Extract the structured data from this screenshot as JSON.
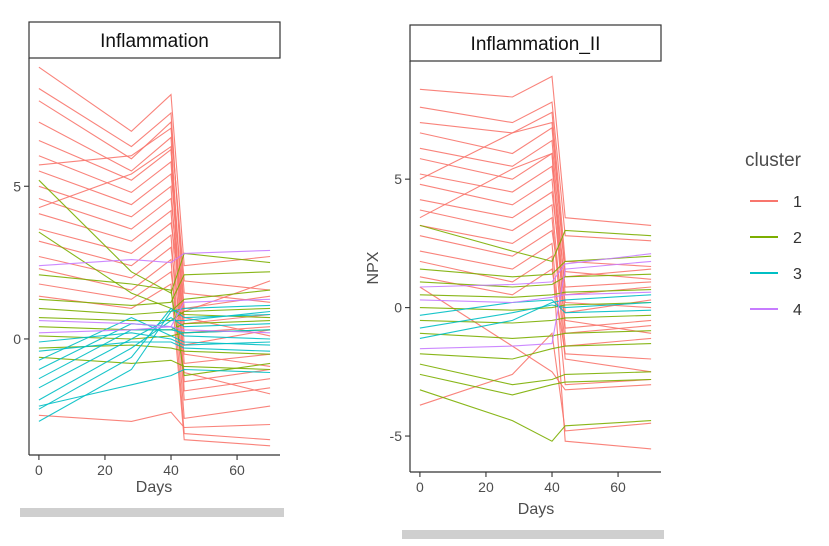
{
  "chart_data": {
    "type": "line",
    "legend": {
      "title": "cluster",
      "position": "right",
      "entries": [
        {
          "label": "1",
          "color": "#F8766D"
        },
        {
          "label": "2",
          "color": "#7CAE00"
        },
        {
          "label": "3",
          "color": "#00BFC4"
        },
        {
          "label": "4",
          "color": "#C77CFF"
        }
      ]
    },
    "panels": [
      {
        "strip_label": "Inflammation",
        "xlabel": "Days",
        "ylabel": "",
        "xlim": [
          -3,
          73
        ],
        "ylim": [
          -3.8,
          9.2
        ],
        "x_ticks": [
          0,
          20,
          40,
          60
        ],
        "y_ticks": [
          0,
          5
        ],
        "x": [
          0,
          28,
          40,
          44,
          70
        ],
        "series": [
          {
            "cluster": "1",
            "values": [
              8.9,
              6.8,
              8.0,
              2.4,
              2.7
            ]
          },
          {
            "cluster": "1",
            "values": [
              8.2,
              6.3,
              7.4,
              0.9,
              1.9
            ]
          },
          {
            "cluster": "1",
            "values": [
              7.8,
              5.9,
              7.1,
              1.5,
              1.2
            ]
          },
          {
            "cluster": "1",
            "values": [
              7.1,
              5.5,
              6.6,
              -0.2,
              0.3
            ]
          },
          {
            "cluster": "1",
            "values": [
              6.5,
              5.2,
              6.2,
              0.5,
              0.8
            ]
          },
          {
            "cluster": "1",
            "values": [
              6.0,
              4.8,
              5.8,
              -0.8,
              -0.5
            ]
          },
          {
            "cluster": "1",
            "values": [
              5.5,
              4.4,
              5.4,
              1.0,
              1.4
            ]
          },
          {
            "cluster": "1",
            "values": [
              5.0,
              4.0,
              5.0,
              -1.4,
              -1.0
            ]
          },
          {
            "cluster": "1",
            "values": [
              4.6,
              3.6,
              4.6,
              0.2,
              0.4
            ]
          },
          {
            "cluster": "1",
            "values": [
              4.1,
              3.2,
              4.2,
              -2.0,
              -1.6
            ]
          },
          {
            "cluster": "1",
            "values": [
              3.6,
              2.8,
              3.8,
              0.7,
              0.1
            ]
          },
          {
            "cluster": "1",
            "values": [
              3.2,
              2.4,
              3.4,
              -2.6,
              -2.2
            ]
          },
          {
            "cluster": "1",
            "values": [
              2.7,
              2.0,
              3.0,
              -0.5,
              -0.9
            ]
          },
          {
            "cluster": "1",
            "values": [
              2.3,
              1.6,
              2.6,
              -3.1,
              -3.3
            ]
          },
          {
            "cluster": "1",
            "values": [
              1.8,
              1.3,
              2.2,
              -1.1,
              -1.8
            ]
          },
          {
            "cluster": "1",
            "values": [
              1.4,
              1.0,
              1.8,
              -3.3,
              -3.5
            ]
          },
          {
            "cluster": "1",
            "values": [
              -2.5,
              -2.7,
              -2.4,
              -2.9,
              -2.8
            ]
          },
          {
            "cluster": "1",
            "values": [
              5.7,
              6.0,
              6.9,
              1.9,
              1.6
            ]
          },
          {
            "cluster": "1",
            "values": [
              4.3,
              5.4,
              6.3,
              -1.7,
              -1.3
            ]
          },
          {
            "cluster": "2",
            "values": [
              1.3,
              1.1,
              1.2,
              2.1,
              2.2
            ]
          },
          {
            "cluster": "2",
            "values": [
              1.0,
              0.8,
              0.9,
              1.3,
              1.6
            ]
          },
          {
            "cluster": "2",
            "values": [
              0.7,
              0.6,
              0.6,
              0.9,
              1.0
            ]
          },
          {
            "cluster": "2",
            "values": [
              0.4,
              0.3,
              0.3,
              0.5,
              0.6
            ]
          },
          {
            "cluster": "2",
            "values": [
              0.1,
              0.0,
              0.1,
              0.2,
              0.3
            ]
          },
          {
            "cluster": "2",
            "values": [
              -0.3,
              -0.2,
              -0.3,
              -0.4,
              -0.5
            ]
          },
          {
            "cluster": "2",
            "values": [
              -0.6,
              -0.8,
              -0.7,
              -0.9,
              -1.0
            ]
          },
          {
            "cluster": "2",
            "values": [
              5.2,
              2.2,
              1.5,
              2.8,
              2.5
            ]
          },
          {
            "cluster": "2",
            "values": [
              3.5,
              1.5,
              1.0,
              0.8,
              0.7
            ]
          },
          {
            "cluster": "2",
            "values": [
              2.1,
              1.8,
              1.6,
              -1.2,
              -0.8
            ]
          },
          {
            "cluster": "3",
            "values": [
              -2.7,
              -1.0,
              0.9,
              1.0,
              1.1
            ]
          },
          {
            "cluster": "3",
            "values": [
              -2.3,
              -0.6,
              1.0,
              0.7,
              0.8
            ]
          },
          {
            "cluster": "3",
            "values": [
              -2.0,
              -0.3,
              0.6,
              0.6,
              0.9
            ]
          },
          {
            "cluster": "3",
            "values": [
              -1.6,
              0.0,
              0.7,
              0.4,
              0.5
            ]
          },
          {
            "cluster": "3",
            "values": [
              -1.3,
              0.3,
              0.3,
              0.2,
              0.3
            ]
          },
          {
            "cluster": "3",
            "values": [
              -1.0,
              0.5,
              0.4,
              0.1,
              0.0
            ]
          },
          {
            "cluster": "3",
            "values": [
              -0.7,
              0.7,
              0.1,
              -0.1,
              -0.2
            ]
          },
          {
            "cluster": "3",
            "values": [
              -0.4,
              -0.1,
              -0.1,
              -0.3,
              -0.4
            ]
          },
          {
            "cluster": "3",
            "values": [
              -0.1,
              0.2,
              0.0,
              -0.2,
              -0.1
            ]
          },
          {
            "cluster": "3",
            "values": [
              -2.2,
              -1.5,
              -1.2,
              -1.0,
              -1.1
            ]
          },
          {
            "cluster": "4",
            "values": [
              2.4,
              2.6,
              2.5,
              2.8,
              2.9
            ]
          },
          {
            "cluster": "4",
            "values": [
              0.2,
              0.3,
              0.4,
              1.2,
              1.3
            ]
          },
          {
            "cluster": "4",
            "values": [
              0.6,
              0.5,
              0.4,
              0.3,
              0.2
            ]
          }
        ]
      },
      {
        "strip_label": "Inflammation_II",
        "xlabel": "Days",
        "ylabel": "NPX",
        "xlim": [
          -3,
          73
        ],
        "ylim": [
          -6.4,
          9.6
        ],
        "x_ticks": [
          0,
          20,
          40,
          60
        ],
        "y_ticks": [
          -5,
          0,
          5
        ],
        "x": [
          0,
          28,
          40,
          44,
          70
        ],
        "series": [
          {
            "cluster": "1",
            "values": [
              8.5,
              8.2,
              9.0,
              3.5,
              3.2
            ]
          },
          {
            "cluster": "1",
            "values": [
              7.8,
              7.2,
              8.0,
              2.8,
              2.6
            ]
          },
          {
            "cluster": "1",
            "values": [
              7.2,
              6.8,
              7.6,
              1.8,
              1.6
            ]
          },
          {
            "cluster": "1",
            "values": [
              6.8,
              6.0,
              7.0,
              1.2,
              1.5
            ]
          },
          {
            "cluster": "1",
            "values": [
              6.2,
              5.5,
              6.5,
              0.5,
              0.8
            ]
          },
          {
            "cluster": "1",
            "values": [
              5.8,
              5.0,
              6.0,
              -0.2,
              0.3
            ]
          },
          {
            "cluster": "1",
            "values": [
              5.2,
              4.5,
              5.5,
              0.8,
              1.0
            ]
          },
          {
            "cluster": "1",
            "values": [
              4.8,
              4.0,
              5.0,
              -0.8,
              -0.5
            ]
          },
          {
            "cluster": "1",
            "values": [
              4.2,
              3.5,
              4.5,
              0.2,
              0.0
            ]
          },
          {
            "cluster": "1",
            "values": [
              3.8,
              3.0,
              4.0,
              -1.5,
              -1.2
            ]
          },
          {
            "cluster": "1",
            "values": [
              3.2,
              2.5,
              3.5,
              -2.0,
              -2.5
            ]
          },
          {
            "cluster": "1",
            "values": [
              2.8,
              2.0,
              3.0,
              -0.5,
              -1.0
            ]
          },
          {
            "cluster": "1",
            "values": [
              2.2,
              1.5,
              2.5,
              -3.0,
              -2.8
            ]
          },
          {
            "cluster": "1",
            "values": [
              1.8,
              1.0,
              2.0,
              -5.2,
              -5.5
            ]
          },
          {
            "cluster": "1",
            "values": [
              1.2,
              0.5,
              1.5,
              -1.8,
              -2.0
            ]
          },
          {
            "cluster": "1",
            "values": [
              -3.8,
              -2.6,
              -1.0,
              -4.8,
              -4.5
            ]
          },
          {
            "cluster": "1",
            "values": [
              0.8,
              -1.5,
              -2.5,
              -3.2,
              -3.0
            ]
          },
          {
            "cluster": "1",
            "values": [
              5.0,
              6.8,
              7.2,
              1.4,
              1.1
            ]
          },
          {
            "cluster": "1",
            "values": [
              3.5,
              5.4,
              6.0,
              -1.0,
              -0.7
            ]
          },
          {
            "cluster": "2",
            "values": [
              3.2,
              2.2,
              1.8,
              3.0,
              2.8
            ]
          },
          {
            "cluster": "2",
            "values": [
              1.5,
              1.2,
              1.3,
              1.8,
              2.0
            ]
          },
          {
            "cluster": "2",
            "values": [
              1.0,
              0.8,
              0.9,
              1.2,
              1.3
            ]
          },
          {
            "cluster": "2",
            "values": [
              0.5,
              0.4,
              0.5,
              0.6,
              0.7
            ]
          },
          {
            "cluster": "2",
            "values": [
              0.0,
              -0.1,
              0.0,
              0.1,
              0.2
            ]
          },
          {
            "cluster": "2",
            "values": [
              -0.5,
              -0.6,
              -0.5,
              -0.4,
              -0.3
            ]
          },
          {
            "cluster": "2",
            "values": [
              -1.0,
              -1.2,
              -1.1,
              -1.0,
              -0.9
            ]
          },
          {
            "cluster": "2",
            "values": [
              -2.2,
              -3.0,
              -2.8,
              -2.6,
              -2.5
            ]
          },
          {
            "cluster": "2",
            "values": [
              -2.6,
              -3.4,
              -3.0,
              -2.9,
              -2.8
            ]
          },
          {
            "cluster": "2",
            "values": [
              -3.2,
              -4.4,
              -5.2,
              -4.6,
              -4.4
            ]
          },
          {
            "cluster": "2",
            "values": [
              -1.8,
              -2.0,
              -1.6,
              -1.5,
              -1.4
            ]
          },
          {
            "cluster": "3",
            "values": [
              -1.2,
              -0.5,
              0.2,
              0.3,
              0.5
            ]
          },
          {
            "cluster": "3",
            "values": [
              -0.8,
              -0.2,
              0.1,
              0.0,
              0.2
            ]
          },
          {
            "cluster": "3",
            "values": [
              -0.3,
              0.2,
              0.3,
              -0.2,
              -0.1
            ]
          },
          {
            "cluster": "4",
            "values": [
              -1.6,
              -1.5,
              -1.4,
              1.5,
              1.8
            ]
          },
          {
            "cluster": "4",
            "values": [
              0.8,
              0.9,
              1.0,
              1.7,
              2.1
            ]
          },
          {
            "cluster": "4",
            "values": [
              0.3,
              0.2,
              0.4,
              0.5,
              0.6
            ]
          }
        ]
      }
    ]
  }
}
